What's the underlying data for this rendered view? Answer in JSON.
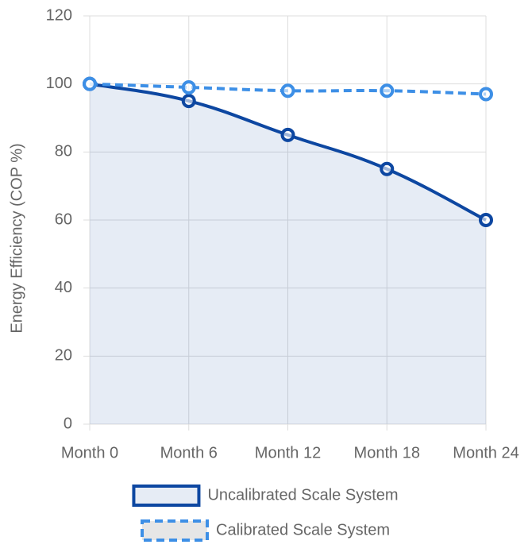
{
  "chart_data": {
    "type": "line",
    "y_label": "Energy Efficiency (COP %)",
    "categories": [
      "Month 0",
      "Month 6",
      "Month 12",
      "Month 18",
      "Month 24"
    ],
    "series": [
      {
        "name": "Uncalibrated Scale System",
        "color": "#0d47a1",
        "fill": true,
        "dashed": false,
        "values": [
          100,
          95,
          85,
          75,
          60
        ]
      },
      {
        "name": "Calibrated Scale System",
        "color": "#3d8fe6",
        "fill": false,
        "dashed": true,
        "values": [
          100,
          99,
          98,
          98,
          97
        ]
      }
    ],
    "ylim": [
      0,
      120
    ],
    "yticks": [
      0,
      20,
      40,
      60,
      80,
      100,
      120
    ],
    "grid": true
  }
}
